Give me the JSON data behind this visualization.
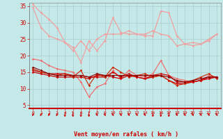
{
  "background_color": "#c5e8e8",
  "grid_color": "#aacccc",
  "xlabel": "Vent moyen/en rafales ( km/h )",
  "x_ticks": [
    0,
    1,
    2,
    3,
    4,
    5,
    6,
    7,
    8,
    9,
    10,
    11,
    12,
    13,
    14,
    15,
    16,
    17,
    18,
    19,
    20,
    21,
    22,
    23
  ],
  "ylim": [
    4,
    36
  ],
  "yticks": [
    5,
    10,
    15,
    20,
    25,
    30,
    35
  ],
  "lines": [
    {
      "color": "#f0a0a0",
      "linewidth": 0.9,
      "marker": "D",
      "markersize": 1.8,
      "y": [
        35.5,
        33.0,
        31.0,
        28.5,
        24.0,
        22.5,
        18.0,
        24.5,
        21.5,
        24.5,
        31.5,
        27.0,
        26.5,
        26.5,
        26.0,
        26.0,
        33.5,
        33.0,
        26.0,
        23.5,
        23.0,
        23.5,
        25.0,
        26.5
      ]
    },
    {
      "color": "#f0a0a0",
      "linewidth": 0.9,
      "marker": "D",
      "markersize": 1.8,
      "y": [
        34.5,
        28.5,
        26.0,
        25.0,
        24.0,
        21.5,
        24.5,
        21.5,
        25.0,
        26.5,
        26.5,
        26.5,
        27.5,
        26.5,
        26.5,
        27.5,
        26.5,
        26.0,
        23.0,
        23.5,
        24.0,
        23.5,
        24.5,
        26.5
      ]
    },
    {
      "color": "#ee7070",
      "linewidth": 0.9,
      "marker": "D",
      "markersize": 1.8,
      "y": [
        19.0,
        18.5,
        17.0,
        16.0,
        15.5,
        15.0,
        12.0,
        7.5,
        10.5,
        11.5,
        15.5,
        13.0,
        15.5,
        14.0,
        13.5,
        14.5,
        18.5,
        14.0,
        13.0,
        12.5,
        12.0,
        12.5,
        14.0,
        13.5
      ]
    },
    {
      "color": "#cc0000",
      "linewidth": 0.9,
      "marker": "D",
      "markersize": 1.8,
      "y": [
        15.5,
        15.0,
        14.5,
        14.5,
        14.5,
        14.0,
        14.0,
        13.5,
        13.5,
        13.5,
        15.0,
        13.5,
        14.5,
        13.5,
        13.0,
        14.0,
        14.5,
        14.0,
        12.0,
        12.0,
        12.0,
        12.5,
        13.5,
        13.5
      ]
    },
    {
      "color": "#cc0000",
      "linewidth": 0.9,
      "marker": "D",
      "markersize": 1.8,
      "y": [
        15.0,
        14.5,
        14.0,
        13.5,
        13.5,
        13.5,
        13.5,
        13.0,
        14.0,
        14.0,
        13.5,
        13.0,
        14.0,
        13.5,
        13.0,
        13.5,
        14.0,
        12.5,
        11.5,
        11.5,
        12.0,
        12.5,
        13.0,
        13.5
      ]
    },
    {
      "color": "#cc2200",
      "linewidth": 0.8,
      "marker": "D",
      "markersize": 1.8,
      "y": [
        16.0,
        15.0,
        14.5,
        14.0,
        14.5,
        13.5,
        15.5,
        11.0,
        14.5,
        13.5,
        16.5,
        15.0,
        13.5,
        14.0,
        14.5,
        13.5,
        14.0,
        12.5,
        11.0,
        11.5,
        12.5,
        13.5,
        14.5,
        13.0
      ]
    },
    {
      "color": "#880000",
      "linewidth": 0.8,
      "marker": "D",
      "markersize": 1.8,
      "y": [
        16.5,
        15.5,
        14.5,
        14.0,
        14.0,
        14.0,
        14.0,
        13.5,
        14.5,
        14.0,
        14.0,
        14.0,
        14.0,
        14.0,
        14.0,
        14.0,
        14.0,
        13.5,
        12.5,
        12.0,
        12.5,
        13.0,
        13.5,
        13.5
      ]
    }
  ],
  "arrow_color": "#cc0000",
  "arrow_angles": [
    225,
    225,
    225,
    225,
    270,
    270,
    270,
    270,
    315,
    315,
    315,
    315,
    315,
    315,
    315,
    270,
    270,
    270,
    315,
    315,
    315,
    315,
    315,
    315
  ]
}
